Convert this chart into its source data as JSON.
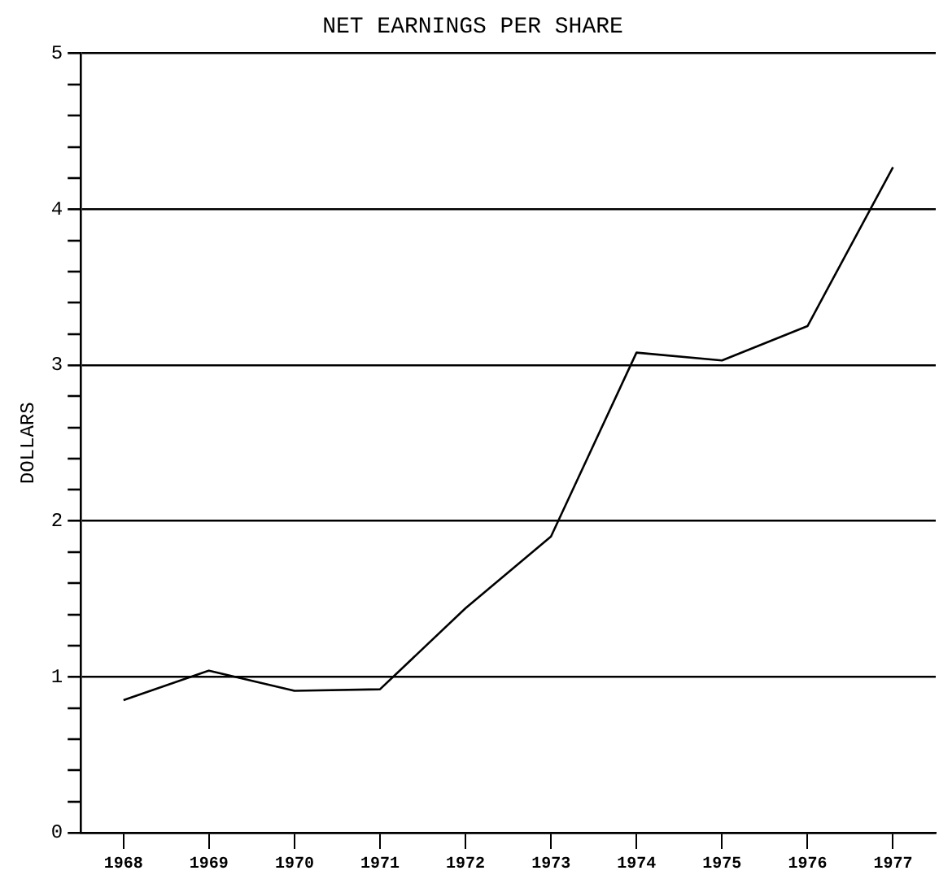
{
  "chart_data": {
    "type": "line",
    "title": "NET EARNINGS PER SHARE",
    "ylabel": "DOLLARS",
    "categories": [
      "1968",
      "1969",
      "1970",
      "1971",
      "1972",
      "1973",
      "1974",
      "1975",
      "1976",
      "1977"
    ],
    "series": [
      {
        "color": "#000000",
        "values": [
          0.85,
          1.04,
          0.91,
          0.92,
          1.44,
          1.9,
          3.08,
          3.03,
          3.25,
          4.27
        ]
      }
    ],
    "ylim": [
      0,
      5
    ],
    "yticks": [
      0,
      {
        "value": 0.2,
        "label": null
      },
      {
        "value": 0.4,
        "label": null
      },
      {
        "value": 0.6,
        "label": null
      },
      {
        "value": 0.8,
        "label": null
      },
      1,
      {
        "value": 1.2,
        "label": null
      },
      {
        "value": 1.4,
        "label": null
      },
      {
        "value": 1.6,
        "label": null
      },
      {
        "value": 1.8,
        "label": null
      },
      2,
      {
        "value": 2.2,
        "label": null
      },
      {
        "value": 2.4,
        "label": null
      },
      {
        "value": 2.6,
        "label": null
      },
      {
        "value": 2.8,
        "label": null
      },
      3,
      {
        "value": 3.2,
        "label": null
      },
      {
        "value": 3.4,
        "label": null
      },
      {
        "value": 3.6,
        "label": null
      },
      {
        "value": 3.8,
        "label": null
      },
      4,
      {
        "value": 4.2,
        "label": null
      },
      {
        "value": 4.4,
        "label": null
      },
      {
        "value": 4.6,
        "label": null
      },
      {
        "value": 4.8,
        "label": null
      },
      5
    ],
    "grid": "y",
    "marker": "none",
    "line_style": "solid",
    "legend": false
  }
}
